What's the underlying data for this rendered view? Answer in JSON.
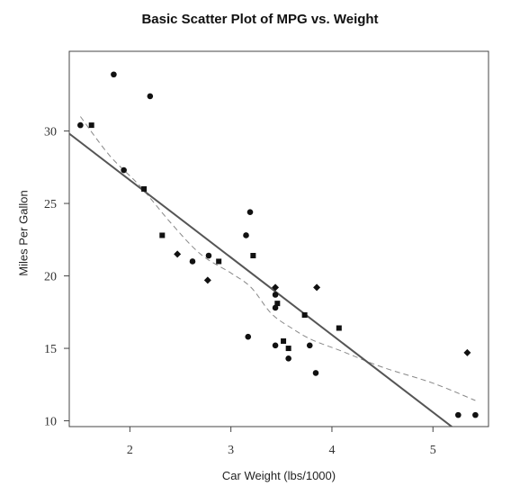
{
  "chart_data": {
    "type": "scatter",
    "title": "Basic Scatter Plot of MPG vs. Weight",
    "xlabel": "Car Weight (lbs/1000)",
    "ylabel": "Miles Per Gallon",
    "xlim": [
      1.4,
      5.55
    ],
    "ylim": [
      9.6,
      35.5
    ],
    "x_ticks": [
      2,
      3,
      4,
      5
    ],
    "y_ticks": [
      10,
      15,
      20,
      25,
      30
    ],
    "grid": false,
    "legend": "none",
    "colors": {
      "points": "#111111",
      "fit_line": "#555555",
      "smooth_line": "#888888",
      "axes": "#444444"
    },
    "points": [
      {
        "x": 1.84,
        "y": 33.9,
        "shape": "circle"
      },
      {
        "x": 2.2,
        "y": 32.4,
        "shape": "circle"
      },
      {
        "x": 1.51,
        "y": 30.4,
        "shape": "circle"
      },
      {
        "x": 1.62,
        "y": 30.4,
        "shape": "square"
      },
      {
        "x": 1.94,
        "y": 27.3,
        "shape": "circle"
      },
      {
        "x": 2.14,
        "y": 26.0,
        "shape": "square"
      },
      {
        "x": 3.19,
        "y": 24.4,
        "shape": "circle"
      },
      {
        "x": 2.32,
        "y": 22.8,
        "shape": "square"
      },
      {
        "x": 3.15,
        "y": 22.8,
        "shape": "circle"
      },
      {
        "x": 2.47,
        "y": 21.5,
        "shape": "diamond"
      },
      {
        "x": 2.78,
        "y": 21.4,
        "shape": "circle"
      },
      {
        "x": 3.22,
        "y": 21.4,
        "shape": "square"
      },
      {
        "x": 2.62,
        "y": 21.0,
        "shape": "circle"
      },
      {
        "x": 2.88,
        "y": 21.0,
        "shape": "square"
      },
      {
        "x": 2.77,
        "y": 19.7,
        "shape": "diamond"
      },
      {
        "x": 3.44,
        "y": 19.2,
        "shape": "diamond"
      },
      {
        "x": 3.85,
        "y": 19.2,
        "shape": "diamond"
      },
      {
        "x": 3.44,
        "y": 18.7,
        "shape": "circle"
      },
      {
        "x": 3.46,
        "y": 18.1,
        "shape": "square"
      },
      {
        "x": 3.44,
        "y": 17.8,
        "shape": "circle"
      },
      {
        "x": 3.73,
        "y": 17.3,
        "shape": "square"
      },
      {
        "x": 4.07,
        "y": 16.4,
        "shape": "square"
      },
      {
        "x": 3.17,
        "y": 15.8,
        "shape": "circle"
      },
      {
        "x": 3.52,
        "y": 15.5,
        "shape": "square"
      },
      {
        "x": 3.44,
        "y": 15.2,
        "shape": "circle"
      },
      {
        "x": 3.78,
        "y": 15.2,
        "shape": "circle"
      },
      {
        "x": 3.57,
        "y": 15.0,
        "shape": "square"
      },
      {
        "x": 5.34,
        "y": 14.7,
        "shape": "diamond"
      },
      {
        "x": 3.57,
        "y": 14.3,
        "shape": "circle"
      },
      {
        "x": 3.84,
        "y": 13.3,
        "shape": "circle"
      },
      {
        "x": 5.25,
        "y": 10.4,
        "shape": "circle"
      },
      {
        "x": 5.42,
        "y": 10.4,
        "shape": "circle"
      }
    ],
    "fit_line": {
      "type": "linear",
      "intercept": 37.29,
      "slope": -5.34
    },
    "smooth_line": {
      "type": "lowess",
      "points": [
        [
          1.51,
          31.0
        ],
        [
          1.8,
          28.3
        ],
        [
          2.1,
          26.2
        ],
        [
          2.4,
          23.7
        ],
        [
          2.7,
          21.5
        ],
        [
          3.0,
          20.2
        ],
        [
          3.2,
          19.2
        ],
        [
          3.4,
          17.4
        ],
        [
          3.6,
          16.4
        ],
        [
          3.8,
          15.6
        ],
        [
          4.1,
          14.8
        ],
        [
          4.5,
          13.7
        ],
        [
          5.0,
          12.6
        ],
        [
          5.42,
          11.4
        ]
      ]
    }
  }
}
